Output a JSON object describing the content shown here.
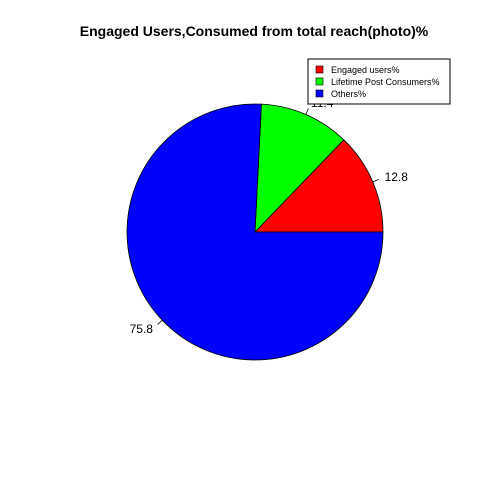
{
  "chart_data": {
    "type": "pie",
    "title": "Engaged Users,Consumed from total reach(photo)%",
    "slices": [
      {
        "name": "Engaged users%",
        "value": 12.8,
        "label": "12.8",
        "color": "#ff0000"
      },
      {
        "name": "Lifetime Post Consumers%",
        "value": 11.4,
        "label": "11.4",
        "color": "#00ff00"
      },
      {
        "name": "Others%",
        "value": 75.8,
        "label": "75.8",
        "color": "#0000ff"
      }
    ],
    "legend": {
      "position": "top-right",
      "entries": [
        "Engaged users%",
        "Lifetime Post Consumers%",
        "Others%"
      ]
    },
    "start_angle_deg": 0,
    "direction": "counterclockwise"
  }
}
